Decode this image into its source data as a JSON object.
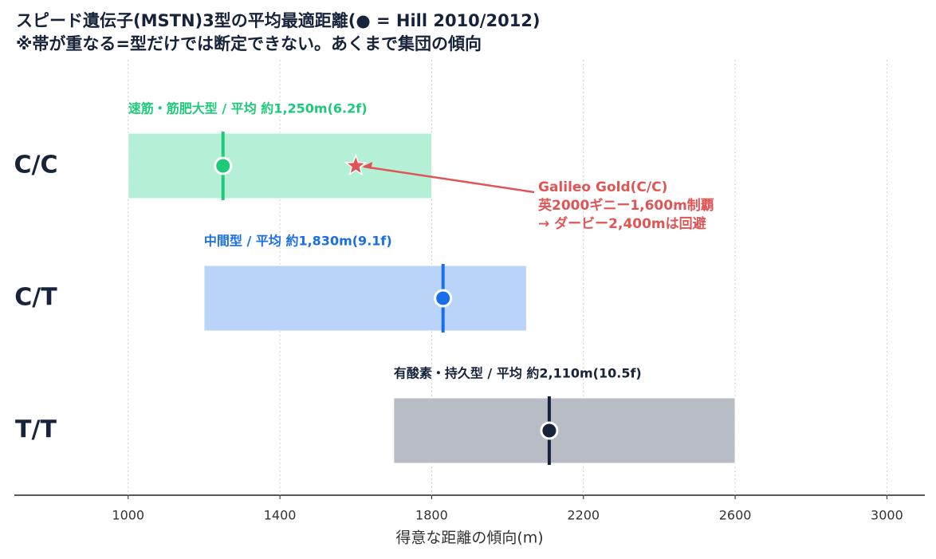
{
  "chart_data": {
    "type": "range",
    "title": "スピード遺伝子(MSTN)3型の平均最適距離(● = Hill 2010/2012)",
    "subtitle": "※帯が重なる=型だけでは断定できない。あくまで集団の傾向",
    "xlabel": "得意な距離の傾向(m)",
    "categories": [
      "C/C",
      "C/T",
      "T/T"
    ],
    "lows": [
      1000,
      1200,
      1700
    ],
    "highs": [
      1800,
      2050,
      2600
    ],
    "means": [
      1250,
      1830,
      2110
    ],
    "labels": [
      "速筋・筋肥大型 / 平均 約1,250m(6.2f)",
      "中間型 / 平均 約1,830m(9.1f)",
      "有酸素・持久型 / 平均 約2,110m(10.5f)"
    ],
    "colors": [
      "#1ec97a",
      "#1a6fe8",
      "#17233a"
    ],
    "band_colors": [
      "#b3f0d6",
      "#bad3f8",
      "#b8bcc4"
    ],
    "xlim": [
      700,
      3100
    ],
    "xticks": [
      1000,
      1400,
      1800,
      2200,
      2600,
      3000
    ],
    "grid": true,
    "annotation": {
      "category": 0,
      "x": 1600,
      "color": "#e05555",
      "lines": [
        "Galileo Gold(C/C)",
        "英2000ギニー1,600m制覇",
        "→ ダービー2,400mは回避"
      ]
    }
  }
}
